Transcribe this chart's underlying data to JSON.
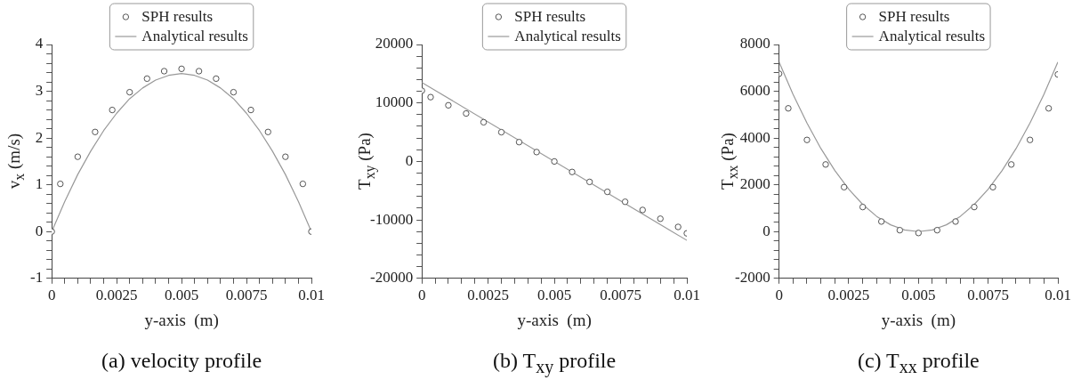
{
  "chart_data": [
    {
      "type": "scatter",
      "title": "(a) velocity profile",
      "xlabel": "y-axis  (m)",
      "ylabel": "v$_{x}$  (m/s)",
      "legend": "top",
      "line_style": "solid",
      "xlim": [
        0,
        0.01
      ],
      "ylim": [
        -1,
        4
      ],
      "xticks": [
        0,
        {
          "value": 0.0005,
          "label": null
        },
        {
          "value": 0.001,
          "label": null
        },
        {
          "value": 0.0015,
          "label": null
        },
        {
          "value": 0.002,
          "label": null
        },
        0.0025,
        {
          "value": 0.003,
          "label": null
        },
        {
          "value": 0.0035,
          "label": null
        },
        {
          "value": 0.004,
          "label": null
        },
        {
          "value": 0.0045,
          "label": null
        },
        0.005,
        {
          "value": 0.0055,
          "label": null
        },
        {
          "value": 0.006,
          "label": null
        },
        {
          "value": 0.0065,
          "label": null
        },
        {
          "value": 0.007,
          "label": null
        },
        0.0075,
        {
          "value": 0.008,
          "label": null
        },
        {
          "value": 0.0085,
          "label": null
        },
        {
          "value": 0.009,
          "label": null
        },
        {
          "value": 0.0095,
          "label": null
        },
        0.01
      ],
      "yticks": [
        -1,
        {
          "value": -0.8,
          "label": null
        },
        {
          "value": -0.6,
          "label": null
        },
        {
          "value": -0.4,
          "label": null
        },
        {
          "value": -0.2,
          "label": null
        },
        0,
        {
          "value": 0.2,
          "label": null
        },
        {
          "value": 0.4,
          "label": null
        },
        {
          "value": 0.6,
          "label": null
        },
        {
          "value": 0.8,
          "label": null
        },
        1,
        {
          "value": 1.2,
          "label": null
        },
        {
          "value": 1.4,
          "label": null
        },
        {
          "value": 1.6,
          "label": null
        },
        {
          "value": 1.8,
          "label": null
        },
        2,
        {
          "value": 2.2,
          "label": null
        },
        {
          "value": 2.4,
          "label": null
        },
        {
          "value": 2.6,
          "label": null
        },
        {
          "value": 2.8,
          "label": null
        },
        3,
        {
          "value": 3.2,
          "label": null
        },
        {
          "value": 3.4,
          "label": null
        },
        {
          "value": 3.6,
          "label": null
        },
        {
          "value": 3.8,
          "label": null
        },
        4
      ],
      "series": [
        {
          "name": "SPH results",
          "type": "scatter",
          "marker": "circle",
          "color": "#555555",
          "x": [
            0,
            0.00033,
            0.001,
            0.00167,
            0.00233,
            0.003,
            0.00367,
            0.00433,
            0.005,
            0.00567,
            0.00633,
            0.007,
            0.00767,
            0.00833,
            0.009,
            0.00967,
            0.01
          ],
          "values": [
            0,
            1.02,
            1.6,
            2.13,
            2.6,
            2.98,
            3.27,
            3.43,
            3.48,
            3.43,
            3.27,
            2.98,
            2.6,
            2.13,
            1.6,
            1.02,
            0
          ]
        },
        {
          "name": "Analytical results",
          "type": "line",
          "color": "#999999",
          "x": [
            0,
            0.0005,
            0.001,
            0.0015,
            0.002,
            0.0025,
            0.003,
            0.0035,
            0.004,
            0.0045,
            0.005,
            0.0055,
            0.006,
            0.0065,
            0.007,
            0.0075,
            0.008,
            0.0085,
            0.009,
            0.0095,
            0.01
          ],
          "values": [
            0,
            0.64,
            1.22,
            1.72,
            2.16,
            2.53,
            2.84,
            3.07,
            3.24,
            3.34,
            3.38,
            3.34,
            3.24,
            3.07,
            2.84,
            2.53,
            2.16,
            1.72,
            1.22,
            0.64,
            0
          ]
        }
      ]
    },
    {
      "type": "scatter",
      "title": "(b) T$_{xy}$ profile",
      "xlabel": "y-axis  (m)",
      "ylabel": "T$_{xy}$  (Pa)",
      "legend": "top",
      "line_style": "solid",
      "xlim": [
        0,
        0.01
      ],
      "ylim": [
        -20000,
        20000
      ],
      "xticks": [
        0,
        {
          "value": 0.0005,
          "label": null
        },
        {
          "value": 0.001,
          "label": null
        },
        {
          "value": 0.0015,
          "label": null
        },
        {
          "value": 0.002,
          "label": null
        },
        0.0025,
        {
          "value": 0.003,
          "label": null
        },
        {
          "value": 0.0035,
          "label": null
        },
        {
          "value": 0.004,
          "label": null
        },
        {
          "value": 0.0045,
          "label": null
        },
        0.005,
        {
          "value": 0.0055,
          "label": null
        },
        {
          "value": 0.006,
          "label": null
        },
        {
          "value": 0.0065,
          "label": null
        },
        {
          "value": 0.007,
          "label": null
        },
        0.0075,
        {
          "value": 0.008,
          "label": null
        },
        {
          "value": 0.0085,
          "label": null
        },
        {
          "value": 0.009,
          "label": null
        },
        {
          "value": 0.0095,
          "label": null
        },
        0.01
      ],
      "yticks": [
        -20000,
        {
          "value": -18000,
          "label": null
        },
        {
          "value": -16000,
          "label": null
        },
        {
          "value": -14000,
          "label": null
        },
        {
          "value": -12000,
          "label": null
        },
        -10000,
        {
          "value": -8000,
          "label": null
        },
        {
          "value": -6000,
          "label": null
        },
        {
          "value": -4000,
          "label": null
        },
        {
          "value": -2000,
          "label": null
        },
        0,
        {
          "value": 2000,
          "label": null
        },
        {
          "value": 4000,
          "label": null
        },
        {
          "value": 6000,
          "label": null
        },
        {
          "value": 8000,
          "label": null
        },
        10000,
        {
          "value": 12000,
          "label": null
        },
        {
          "value": 14000,
          "label": null
        },
        {
          "value": 16000,
          "label": null
        },
        {
          "value": 18000,
          "label": null
        },
        20000
      ],
      "series": [
        {
          "name": "SPH results",
          "type": "scatter",
          "marker": "circle",
          "color": "#555555",
          "x": [
            0,
            0.00033,
            0.001,
            0.00167,
            0.00233,
            0.003,
            0.00367,
            0.00433,
            0.005,
            0.00567,
            0.00633,
            0.007,
            0.00767,
            0.00833,
            0.009,
            0.00967,
            0.01
          ],
          "values": [
            12100,
            11000,
            9600,
            8200,
            6700,
            5000,
            3300,
            1600,
            0,
            -1800,
            -3500,
            -5200,
            -6900,
            -8300,
            -9800,
            -11200,
            -12300
          ]
        },
        {
          "name": "Analytical results",
          "type": "line",
          "color": "#999999",
          "x": [
            0,
            0.01
          ],
          "values": [
            13500,
            -13500
          ]
        }
      ]
    },
    {
      "type": "scatter",
      "title": "(c) T$_{xx}$ profile",
      "xlabel": "y-axis  (m)",
      "ylabel": "T$_{xx}$  (Pa)",
      "legend": "top",
      "line_style": "solid",
      "xlim": [
        0,
        0.01
      ],
      "ylim": [
        -2000,
        8000
      ],
      "xticks": [
        0,
        {
          "value": 0.0005,
          "label": null
        },
        {
          "value": 0.001,
          "label": null
        },
        {
          "value": 0.0015,
          "label": null
        },
        {
          "value": 0.002,
          "label": null
        },
        0.0025,
        {
          "value": 0.003,
          "label": null
        },
        {
          "value": 0.0035,
          "label": null
        },
        {
          "value": 0.004,
          "label": null
        },
        {
          "value": 0.0045,
          "label": null
        },
        0.005,
        {
          "value": 0.0055,
          "label": null
        },
        {
          "value": 0.006,
          "label": null
        },
        {
          "value": 0.0065,
          "label": null
        },
        {
          "value": 0.007,
          "label": null
        },
        0.0075,
        {
          "value": 0.008,
          "label": null
        },
        {
          "value": 0.0085,
          "label": null
        },
        {
          "value": 0.009,
          "label": null
        },
        {
          "value": 0.0095,
          "label": null
        },
        0.01
      ],
      "yticks": [
        -2000,
        {
          "value": -1600,
          "label": null
        },
        {
          "value": -1200,
          "label": null
        },
        {
          "value": -800,
          "label": null
        },
        {
          "value": -400,
          "label": null
        },
        0,
        {
          "value": 400,
          "label": null
        },
        {
          "value": 800,
          "label": null
        },
        {
          "value": 1200,
          "label": null
        },
        {
          "value": 1600,
          "label": null
        },
        2000,
        {
          "value": 2400,
          "label": null
        },
        {
          "value": 2800,
          "label": null
        },
        {
          "value": 3200,
          "label": null
        },
        {
          "value": 3600,
          "label": null
        },
        4000,
        {
          "value": 4400,
          "label": null
        },
        {
          "value": 4800,
          "label": null
        },
        {
          "value": 5200,
          "label": null
        },
        {
          "value": 5600,
          "label": null
        },
        6000,
        {
          "value": 6400,
          "label": null
        },
        {
          "value": 6800,
          "label": null
        },
        {
          "value": 7200,
          "label": null
        },
        {
          "value": 7600,
          "label": null
        },
        8000
      ],
      "series": [
        {
          "name": "SPH results",
          "type": "scatter",
          "marker": "circle",
          "color": "#555555",
          "x": [
            0,
            0.00033,
            0.001,
            0.00167,
            0.00233,
            0.003,
            0.00367,
            0.00433,
            0.005,
            0.00567,
            0.00633,
            0.007,
            0.00767,
            0.00833,
            0.009,
            0.00967,
            0.01
          ],
          "values": [
            6750,
            5270,
            3920,
            2870,
            1900,
            1050,
            430,
            60,
            -60,
            60,
            430,
            1050,
            1900,
            2870,
            3920,
            5270,
            6720
          ]
        },
        {
          "name": "Analytical results",
          "type": "line",
          "color": "#999999",
          "x": [
            0,
            0.0005,
            0.001,
            0.0015,
            0.002,
            0.0025,
            0.003,
            0.0035,
            0.004,
            0.0045,
            0.005,
            0.0055,
            0.006,
            0.0065,
            0.007,
            0.0075,
            0.008,
            0.0085,
            0.009,
            0.0095,
            0.01
          ],
          "values": [
            7250,
            5870,
            4640,
            3550,
            2610,
            1810,
            1160,
            650,
            290,
            70,
            0,
            70,
            290,
            650,
            1160,
            1810,
            2610,
            3550,
            4640,
            5870,
            7250
          ]
        }
      ]
    }
  ]
}
